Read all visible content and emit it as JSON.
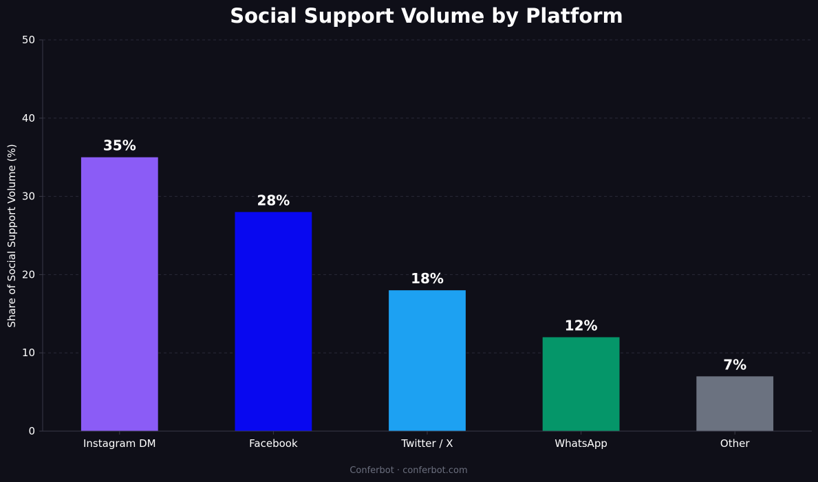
{
  "chart_data": {
    "type": "bar",
    "title": "Social Support Volume by Platform",
    "xlabel": "",
    "ylabel": "Share of Social Support Volume (%)",
    "ylim": [
      0,
      50
    ],
    "yticks": [
      0,
      10,
      20,
      30,
      40,
      50
    ],
    "categories": [
      "Instagram DM",
      "Facebook",
      "Twitter / X",
      "WhatsApp",
      "Other"
    ],
    "values": [
      35,
      28,
      18,
      12,
      7
    ],
    "data_labels": [
      "35%",
      "28%",
      "18%",
      "12%",
      "7%"
    ],
    "colors": [
      "#8b5cf6",
      "#0808f0",
      "#1da1f2",
      "#059669",
      "#6b7280"
    ],
    "grid": true,
    "footer": "Conferbot · conferbot.com"
  },
  "theme": {
    "background": "#0f0f18",
    "grid_color": "#2a2a38",
    "axis_color": "#3a3a48"
  }
}
